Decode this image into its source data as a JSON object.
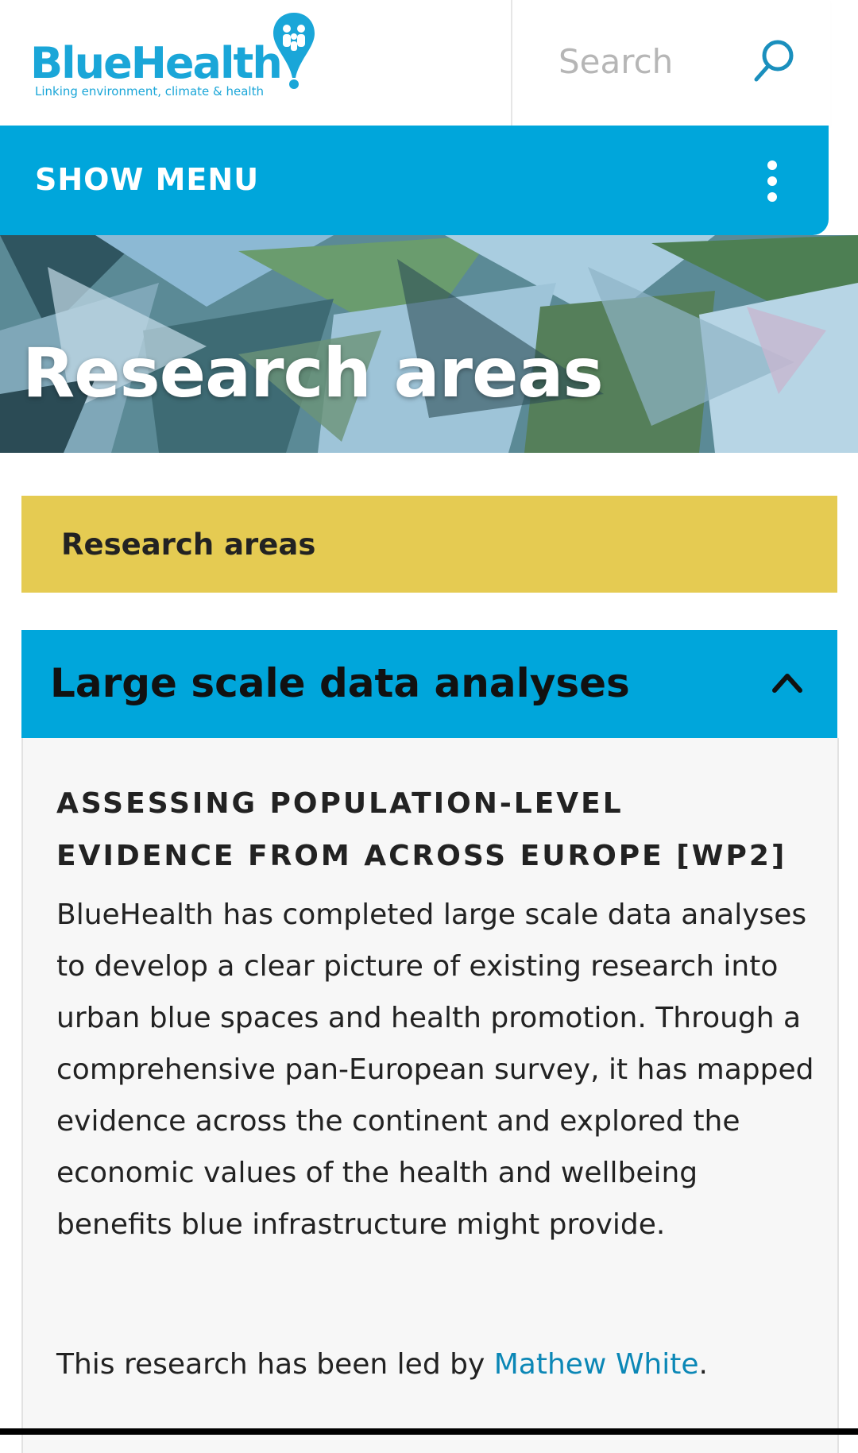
{
  "brand": {
    "name": "BlueHealth",
    "tagline": "Linking environment, climate & health",
    "color": "#1aa6d8"
  },
  "search": {
    "placeholder": "Search",
    "icon": "search-icon"
  },
  "menu": {
    "label": "SHOW MENU",
    "icon": "kebab-menu-icon",
    "color": "#00a6db"
  },
  "hero": {
    "title": "Research areas"
  },
  "breadcrumb": {
    "label": "Research areas",
    "color": "#e5cb52"
  },
  "accordion": {
    "title": "Large scale data analyses",
    "icon": "chevron-up-icon",
    "section_heading": "ASSESSING POPULATION-LEVEL EVIDENCE FROM ACROSS EUROPE [WP2]",
    "paragraph": "BlueHealth has completed large scale data analyses to develop a clear picture of existing research into urban blue spaces and health promotion. Through a comprehensive pan-European survey, it has mapped evidence across the continent and explored the economic values of the health and wellbeing benefits blue infrastructure might provide.",
    "led_by_prefix": "This research has been led by ",
    "led_by_name": "Mathew White",
    "led_by_suffix": "."
  }
}
